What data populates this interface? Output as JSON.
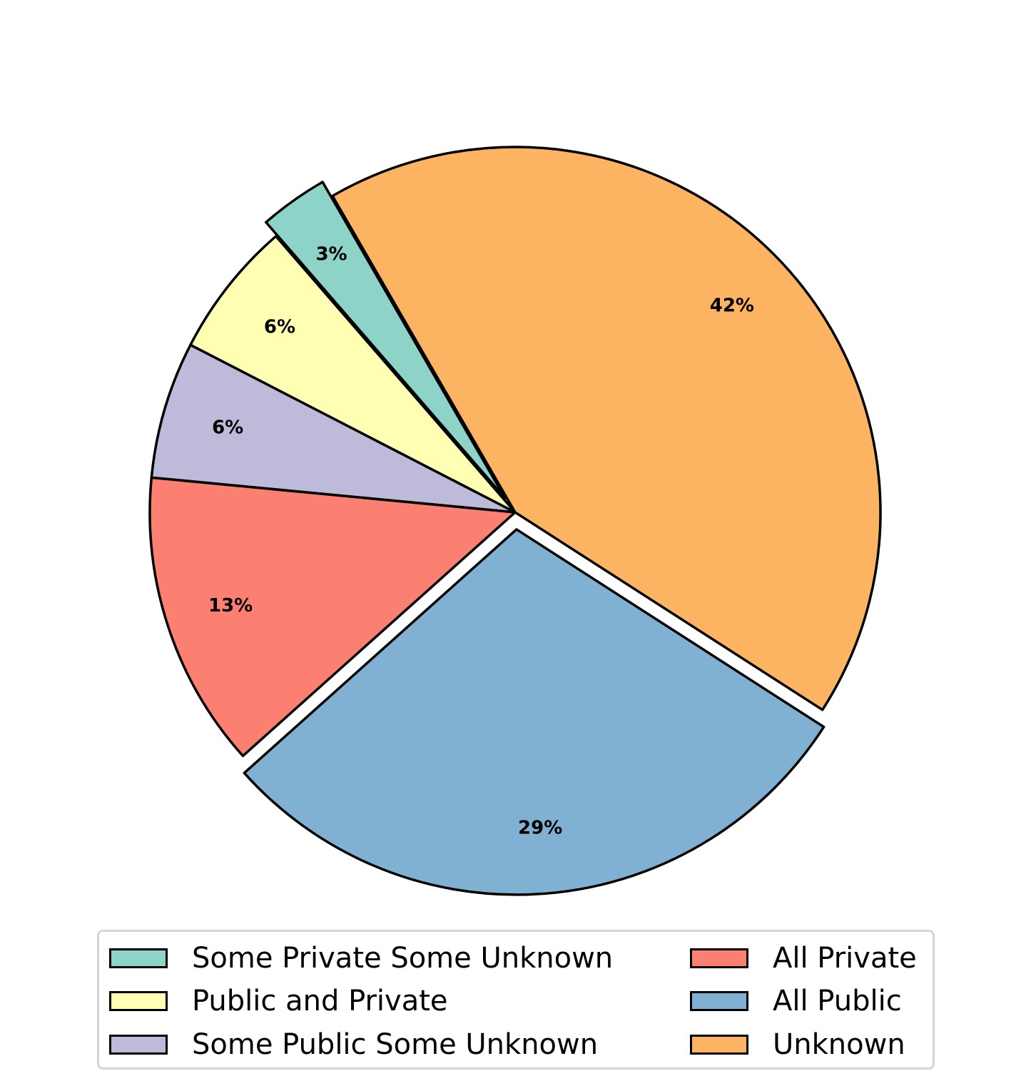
{
  "chart_data": {
    "type": "pie",
    "slices": [
      {
        "label": "Some Private Some Unknown",
        "value": 3,
        "pct_label": "3%",
        "color": "#8dd3c7",
        "exploded": true
      },
      {
        "label": "Public and Private",
        "value": 6,
        "pct_label": "6%",
        "color": "#ffffb3",
        "exploded": false
      },
      {
        "label": "Some Public Some Unknown",
        "value": 6,
        "pct_label": "6%",
        "color": "#bebada",
        "exploded": false
      },
      {
        "label": "All Private",
        "value": 13,
        "pct_label": "13%",
        "color": "#fb8072",
        "exploded": false
      },
      {
        "label": "All Public",
        "value": 29,
        "pct_label": "29%",
        "color": "#80b1d3",
        "exploded": true
      },
      {
        "label": "Unknown",
        "value": 42,
        "pct_label": "42%",
        "color": "#fdb462",
        "exploded": false
      }
    ],
    "legend": {
      "placement": "bottom-center",
      "columns": 2,
      "entries": [
        "Some Private Some Unknown",
        "Public and Private",
        "Some Public Some Unknown",
        "All Private",
        "All Public",
        "Unknown"
      ]
    },
    "title": "",
    "edge_color": "#000000"
  }
}
